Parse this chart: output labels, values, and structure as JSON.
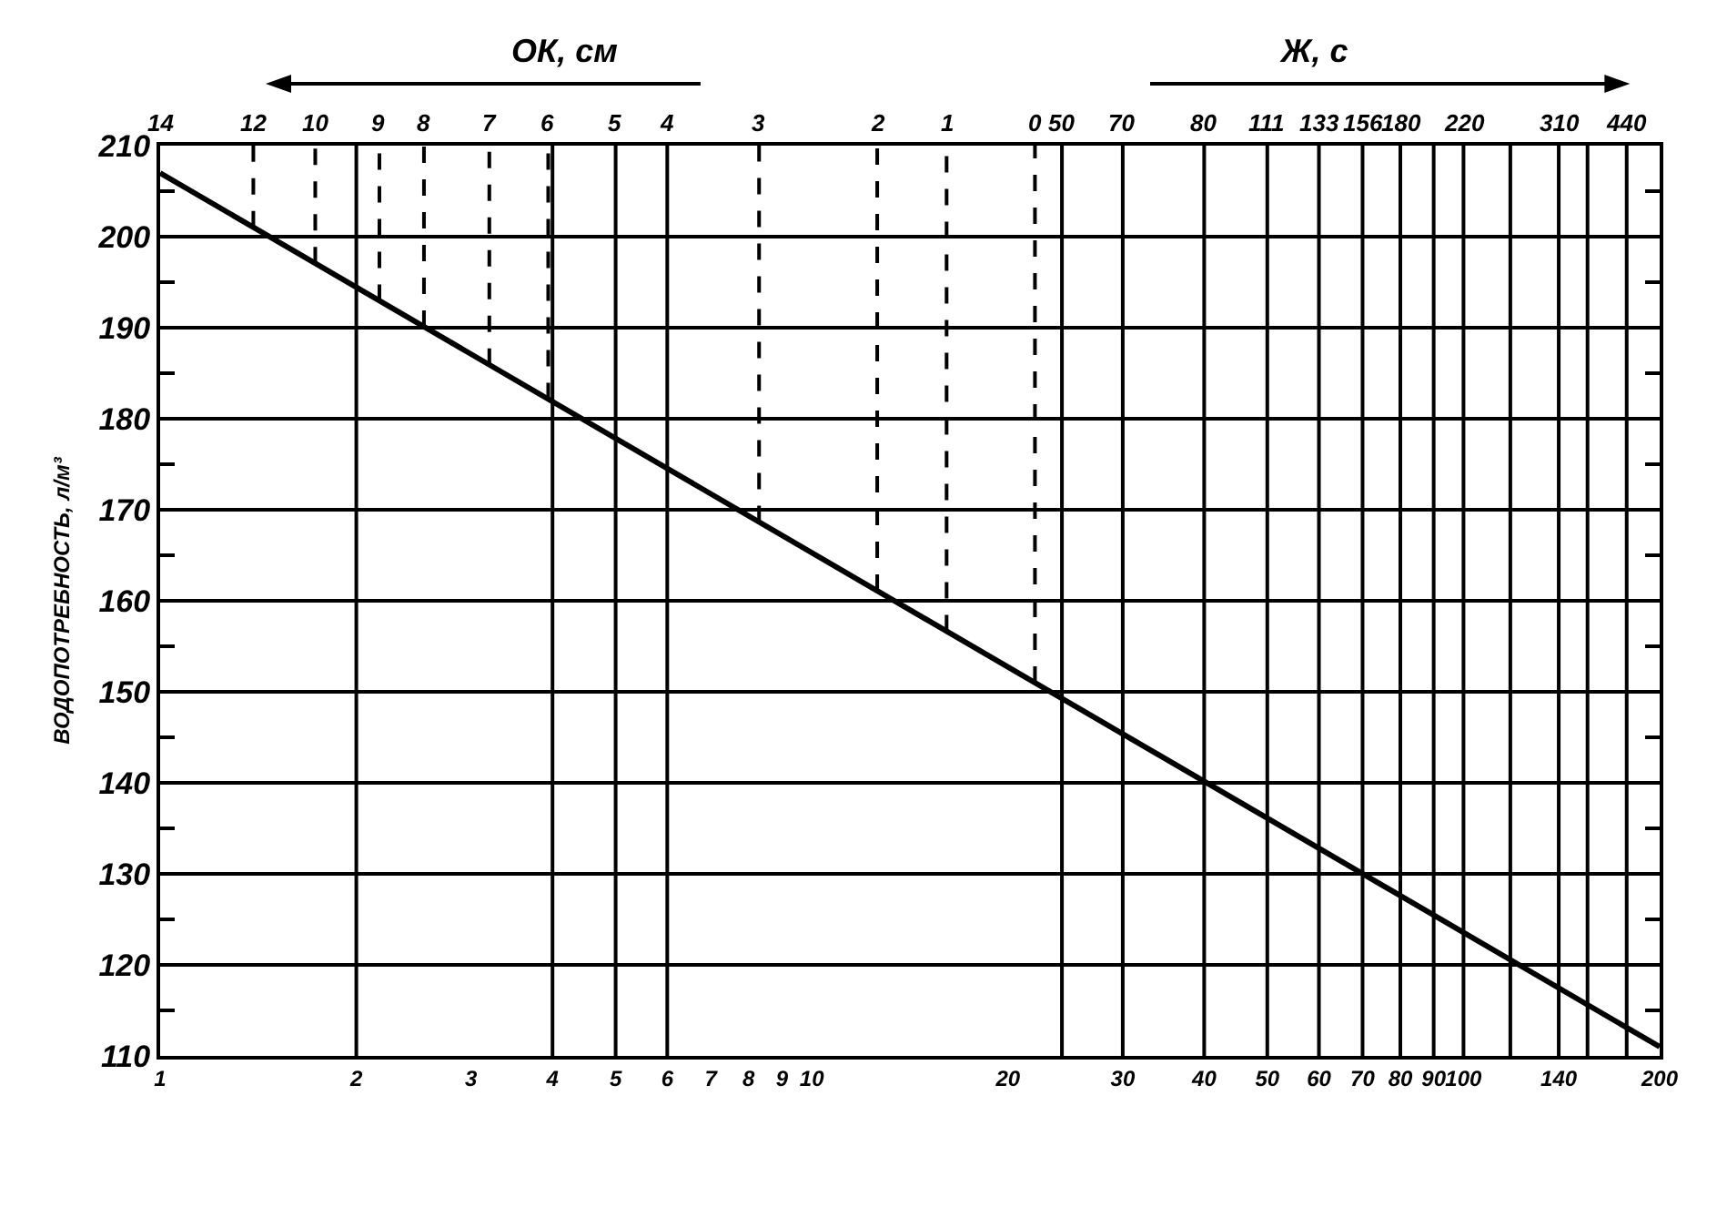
{
  "chart_data": {
    "type": "line",
    "ylabel": "ВОДОПОТРЕБНОСТЬ, л/м³",
    "annotations": [
      "ОК, см",
      "Ж, с",
      "14",
      {
        "text": "12",
        "x": 1.39,
        "y": 210
      },
      {
        "text": "10",
        "x": 1.73,
        "y": 210
      },
      {
        "text": "9",
        "x": 2.17,
        "y": 210
      },
      {
        "text": "8",
        "x": 2.54,
        "y": 210
      },
      {
        "text": "7",
        "x": 3.2,
        "y": 210
      },
      {
        "text": "6",
        "x": 3.94,
        "y": 210
      },
      {
        "text": "5",
        "x": 5,
        "y": 210
      },
      {
        "text": "4",
        "x": 6,
        "y": 210
      },
      {
        "text": "3",
        "x": 8.3,
        "y": 210
      },
      {
        "text": "2",
        "x": 12.6,
        "y": 210
      },
      {
        "text": "1",
        "x": 16.1,
        "y": 210
      },
      {
        "text": "0",
        "x": 22,
        "y": 210
      },
      {
        "text": "50",
        "x": 24.2,
        "y": 210
      },
      {
        "text": "70",
        "x": 30,
        "y": 210
      },
      {
        "text": "80",
        "x": 40,
        "y": 210
      },
      {
        "text": "111",
        "x": 50,
        "y": 210
      },
      {
        "text": "133",
        "x": 60,
        "y": 210
      },
      {
        "text": "156",
        "x": 70,
        "y": 210
      },
      {
        "text": "180",
        "x": 80,
        "y": 210
      },
      {
        "text": "220",
        "x": 100,
        "y": 210
      },
      {
        "text": "310",
        "x": 140,
        "y": 210
      },
      {
        "text": "440",
        "x": 178,
        "y": 210
      }
    ],
    "x": [
      1,
      200
    ],
    "series": [
      {
        "color": "#000000",
        "values": [
          207,
          111
        ]
      }
    ],
    "marker": "none",
    "line_style": "solid",
    "log": "x",
    "grid": "y",
    "xlim": [
      1,
      200
    ],
    "xticks": [
      1,
      2,
      3,
      4,
      5,
      6,
      7,
      8,
      9,
      10,
      20,
      30,
      40,
      50,
      60,
      70,
      80,
      90,
      100,
      140,
      200
    ],
    "ylim": [
      110,
      210
    ],
    "yticks": [
      110,
      {
        "value": 115,
        "label": null
      },
      120,
      {
        "value": 125,
        "label": null
      },
      130,
      {
        "value": 135,
        "label": null
      },
      140,
      {
        "value": 145,
        "label": null
      },
      150,
      {
        "value": 155,
        "label": null
      },
      160,
      {
        "value": 165,
        "label": null
      },
      170,
      {
        "value": 175,
        "label": null
      },
      180,
      {
        "value": 185,
        "label": null
      },
      190,
      {
        "value": 195,
        "label": null
      },
      200,
      {
        "value": 205,
        "label": null
      },
      210
    ],
    "ref_lines": [
      {
        "axis": "x",
        "value": 1.39,
        "line_style": "dashed"
      },
      {
        "axis": "x",
        "value": 1.73,
        "line_style": "dashed"
      },
      {
        "axis": "x",
        "value": 2,
        "line_style": "solid"
      },
      {
        "axis": "x",
        "value": 2.17,
        "line_style": "dashed"
      },
      {
        "axis": "x",
        "value": 2.54,
        "line_style": "dashed"
      },
      {
        "axis": "x",
        "value": 3.2,
        "line_style": "dashed"
      },
      {
        "axis": "x",
        "value": 3.94,
        "line_style": "dashed"
      },
      {
        "axis": "x",
        "value": 4,
        "line_style": "solid"
      },
      {
        "axis": "x",
        "value": 5,
        "line_style": "solid"
      },
      {
        "axis": "x",
        "value": 6,
        "line_style": "solid"
      },
      {
        "axis": "x",
        "value": 8.3,
        "line_style": "dashed"
      },
      {
        "axis": "x",
        "value": 12.6,
        "line_style": "dashed"
      },
      {
        "axis": "x",
        "value": 16.1,
        "line_style": "dashed"
      },
      {
        "axis": "x",
        "value": 22,
        "line_style": "dashed"
      },
      {
        "axis": "x",
        "value": 24.2,
        "line_style": "solid"
      },
      {
        "axis": "x",
        "value": 30,
        "line_style": "solid"
      },
      {
        "axis": "x",
        "value": 40,
        "line_style": "solid"
      },
      {
        "axis": "x",
        "value": 50,
        "line_style": "solid"
      },
      {
        "axis": "x",
        "value": 60,
        "line_style": "solid"
      },
      {
        "axis": "x",
        "value": 70,
        "line_style": "solid"
      },
      {
        "axis": "x",
        "value": 80,
        "line_style": "solid"
      },
      {
        "axis": "x",
        "value": 90,
        "line_style": "solid"
      },
      {
        "axis": "x",
        "value": 100,
        "line_style": "solid"
      },
      {
        "axis": "x",
        "value": 118,
        "line_style": "solid"
      },
      {
        "axis": "x",
        "value": 140,
        "line_style": "solid"
      },
      {
        "axis": "x",
        "value": 155,
        "line_style": "solid"
      },
      {
        "axis": "x",
        "value": 178,
        "line_style": "solid"
      }
    ]
  }
}
